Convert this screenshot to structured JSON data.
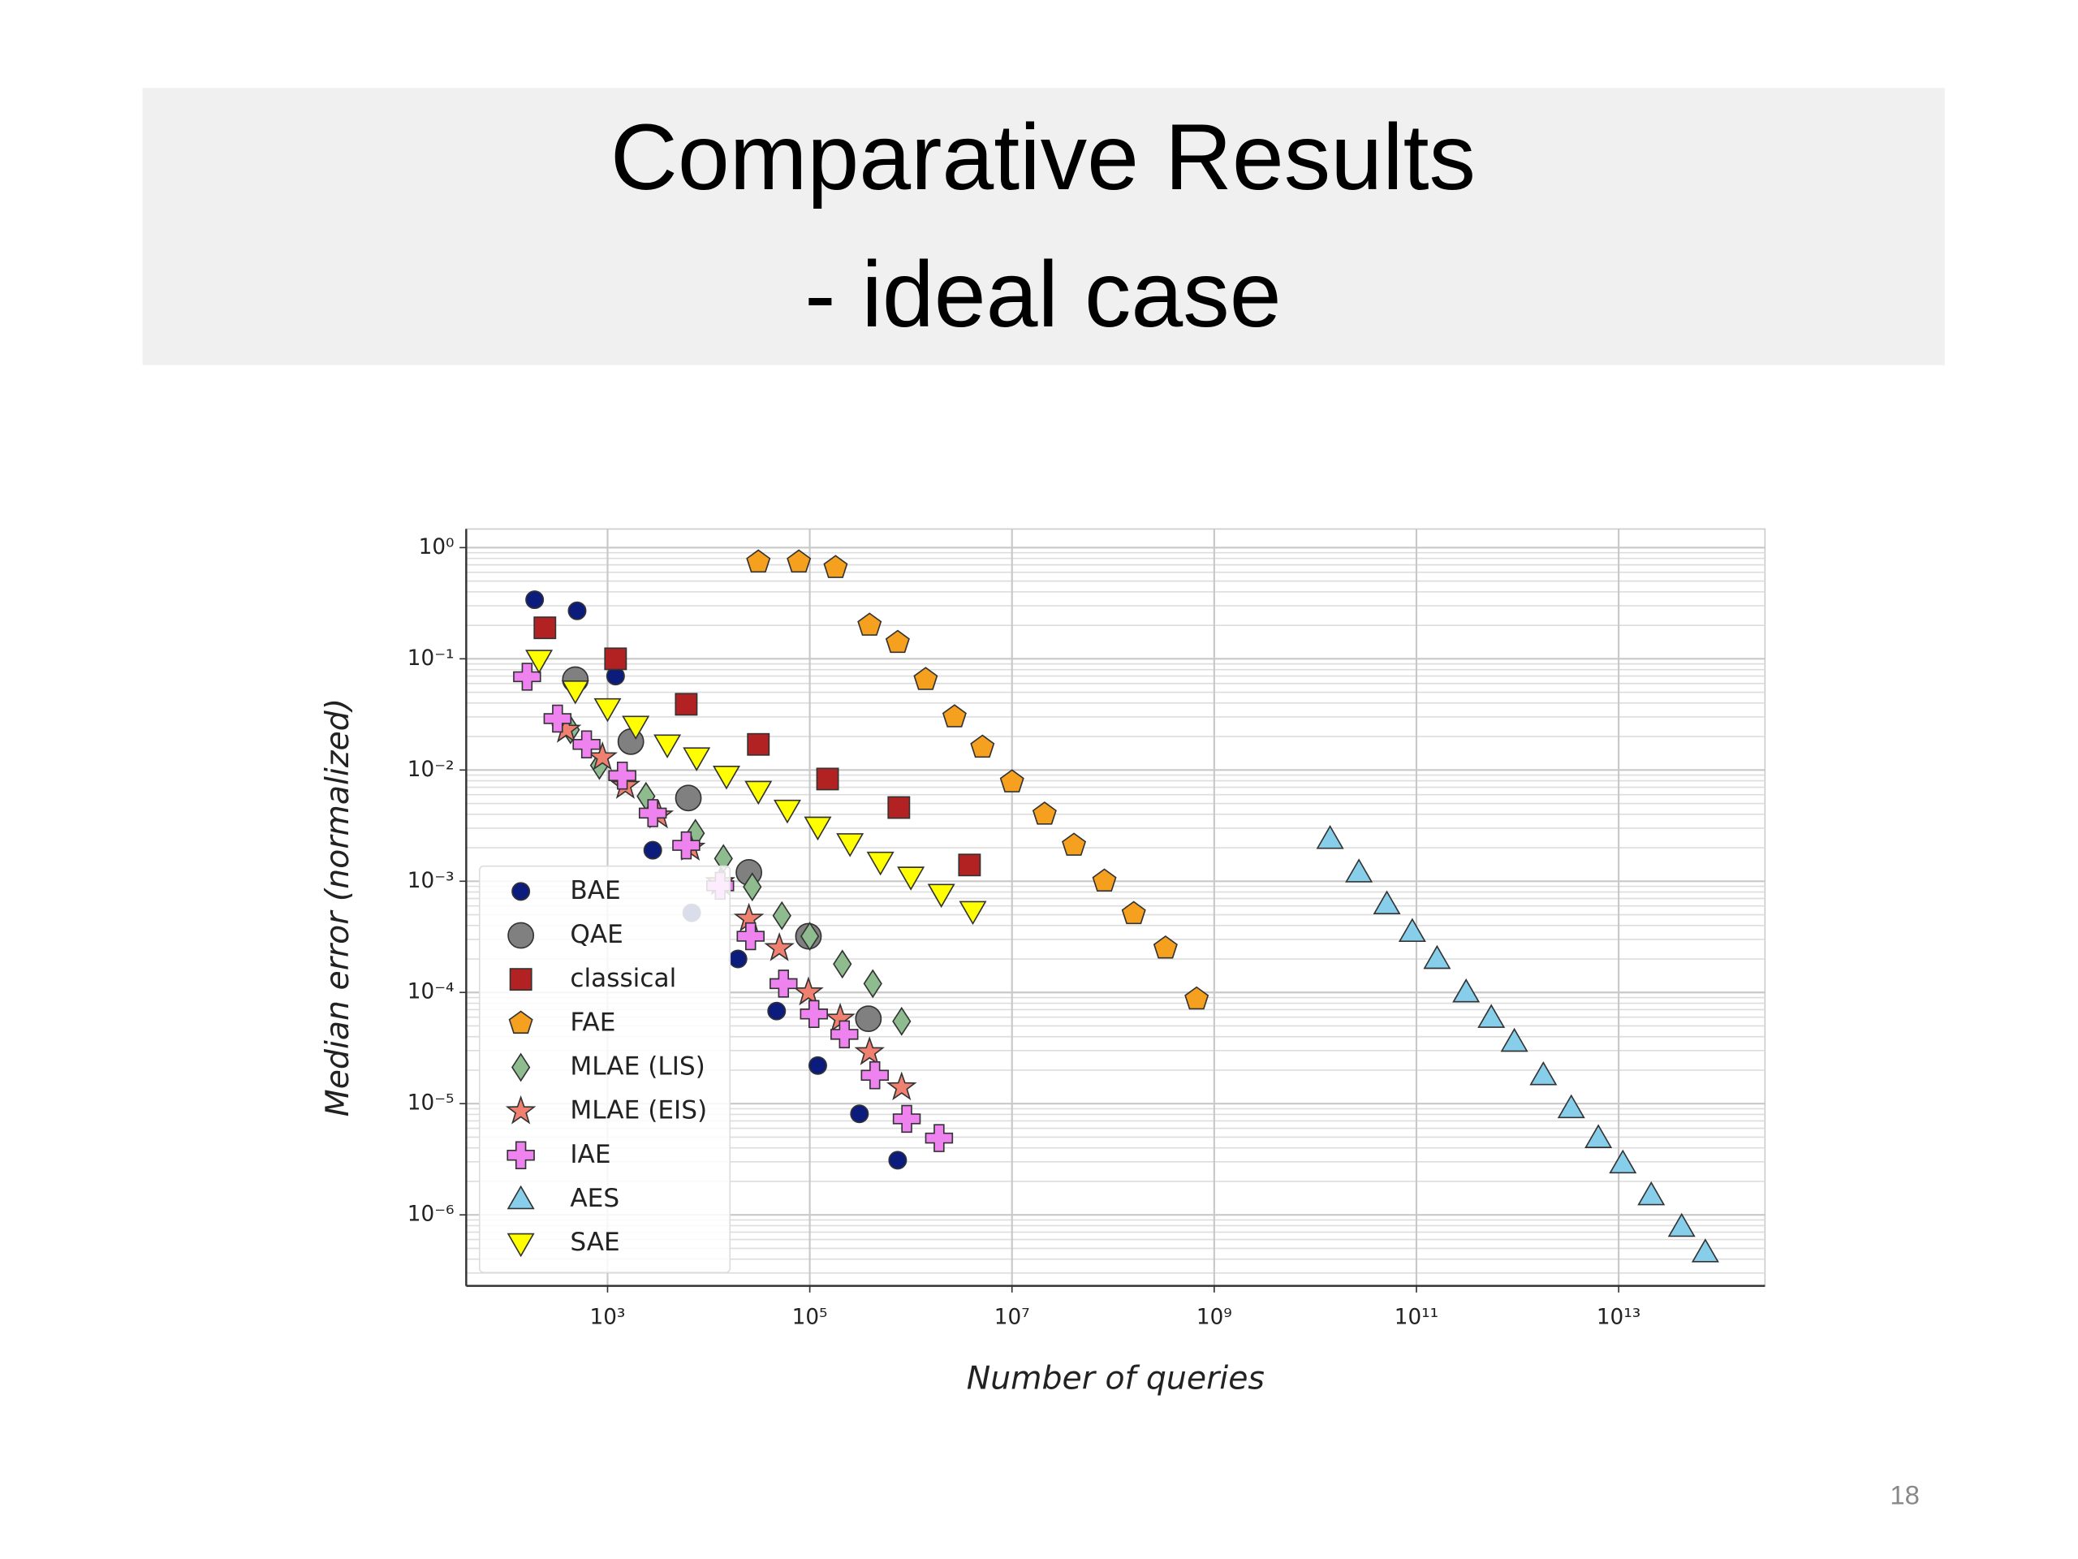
{
  "slide": {
    "title": "Comparative Results",
    "subtitle": "- ideal case",
    "page_number": "18"
  },
  "chart_data": {
    "type": "scatter",
    "x_label": "Number of queries",
    "y_label": "Median error (normalized)",
    "xscale": "log",
    "yscale": "log",
    "xlim": [
      40,
      280000000000000
    ],
    "ylim": [
      2.3e-07,
      1.47
    ],
    "xticks": [
      {
        "value": 1000,
        "label": "10³"
      },
      {
        "value": 100000,
        "label": "10⁵"
      },
      {
        "value": 10000000,
        "label": "10⁷"
      },
      {
        "value": 1000000000,
        "label": "10⁹"
      },
      {
        "value": 100000000000,
        "label": "10¹¹"
      },
      {
        "value": 10000000000000,
        "label": "10¹³"
      }
    ],
    "yticks": [
      {
        "value": 1,
        "label": "10⁰"
      },
      {
        "value": 0.1,
        "label": "10⁻¹"
      },
      {
        "value": 0.01,
        "label": "10⁻²"
      },
      {
        "value": 0.001,
        "label": "10⁻³"
      },
      {
        "value": 0.0001,
        "label": "10⁻⁴"
      },
      {
        "value": 1e-05,
        "label": "10⁻⁵"
      },
      {
        "value": 1e-06,
        "label": "10⁻⁶"
      }
    ],
    "grid": true,
    "minor_grid_y": true,
    "legend": "lower left",
    "series": [
      {
        "name": "BAE",
        "color": "#0b1c7c",
        "marker": "o",
        "x": [
          190,
          500,
          1200,
          2800,
          6800,
          19500,
          47000,
          120000,
          310000,
          740000
        ],
        "values": [
          0.34,
          0.27,
          0.07,
          0.0019,
          0.00052,
          0.0002,
          6.8e-05,
          2.2e-05,
          8.1e-06,
          3.1e-06
        ]
      },
      {
        "name": "QAE",
        "color": "#808080",
        "marker": "O",
        "x": [
          480,
          1700,
          6300,
          25000,
          97000,
          380000
        ],
        "values": [
          0.065,
          0.018,
          0.0056,
          0.0012,
          0.00032,
          5.8e-05
        ]
      },
      {
        "name": "classical",
        "color": "#b22222",
        "marker": "s",
        "x": [
          240,
          1200,
          6000,
          31000,
          150000,
          760000,
          3800000
        ],
        "values": [
          0.19,
          0.1,
          0.039,
          0.017,
          0.0083,
          0.0046,
          0.0014
        ]
      },
      {
        "name": "FAE",
        "color": "#f5a01e",
        "marker": "p",
        "x": [
          31000,
          78000,
          180000,
          390000,
          740000,
          1400000,
          2700000,
          5100000,
          10000000,
          21000000,
          41000000,
          82000000,
          160000000,
          330000000,
          670000000
        ],
        "values": [
          0.74,
          0.74,
          0.66,
          0.2,
          0.14,
          0.065,
          0.03,
          0.016,
          0.0078,
          0.004,
          0.0021,
          0.001,
          0.00051,
          0.00025,
          8.7e-05
        ]
      },
      {
        "name": "MLAE (LIS)",
        "color": "#8fbc8f",
        "marker": "d",
        "x": [
          430,
          830,
          2400,
          7400,
          14000,
          27000,
          53000,
          100000,
          210000,
          420000,
          810000
        ],
        "values": [
          0.023,
          0.011,
          0.0058,
          0.0027,
          0.0016,
          0.00089,
          0.00049,
          0.00032,
          0.00018,
          0.00012,
          5.5e-05
        ]
      },
      {
        "name": "MLAE (EIS)",
        "color": "#f08070",
        "marker": "*",
        "x": [
          390,
          890,
          1500,
          3200,
          6600,
          13000,
          25000,
          50000,
          97000,
          200000,
          390000,
          810000
        ],
        "values": [
          0.023,
          0.013,
          0.0072,
          0.0039,
          0.002,
          0.00098,
          0.00046,
          0.00025,
          0.0001,
          5.8e-05,
          2.9e-05,
          1.4e-05
        ]
      },
      {
        "name": "IAE",
        "color": "#ee82ee",
        "marker": "P",
        "x": [
          160,
          320,
          620,
          1400,
          2800,
          6000,
          13000,
          26000,
          55000,
          110000,
          220000,
          440000,
          910000,
          1900000
        ],
        "values": [
          0.069,
          0.029,
          0.017,
          0.0089,
          0.0041,
          0.0021,
          0.00091,
          0.00032,
          0.00012,
          6.4e-05,
          4.2e-05,
          1.8e-05,
          7.3e-06,
          4.9e-06
        ]
      },
      {
        "name": "AES",
        "color": "#87ceeb",
        "marker": "^",
        "x": [
          14000000000,
          27000000000,
          51000000000,
          91000000000,
          160000000000,
          310000000000,
          550000000000,
          930000000000,
          1800000000000,
          3400000000000,
          6300000000000,
          11000000000000,
          21000000000000,
          42000000000000,
          72000000000000
        ],
        "values": [
          0.0024,
          0.0012,
          0.00062,
          0.00035,
          0.0002,
          0.0001,
          5.9e-05,
          3.6e-05,
          1.8e-05,
          9.1e-06,
          4.9e-06,
          2.9e-06,
          1.5e-06,
          7.8e-07,
          4.6e-07
        ]
      },
      {
        "name": "SAE",
        "color": "#ffff00",
        "marker": "v",
        "x": [
          210,
          480,
          1000,
          1900,
          3900,
          7600,
          15000,
          31000,
          60000,
          120000,
          250000,
          500000,
          1000000,
          2000000,
          4100000
        ],
        "values": [
          0.098,
          0.052,
          0.036,
          0.025,
          0.017,
          0.013,
          0.0089,
          0.0065,
          0.0044,
          0.0031,
          0.0022,
          0.0015,
          0.0011,
          0.00077,
          0.00054
        ]
      }
    ]
  }
}
